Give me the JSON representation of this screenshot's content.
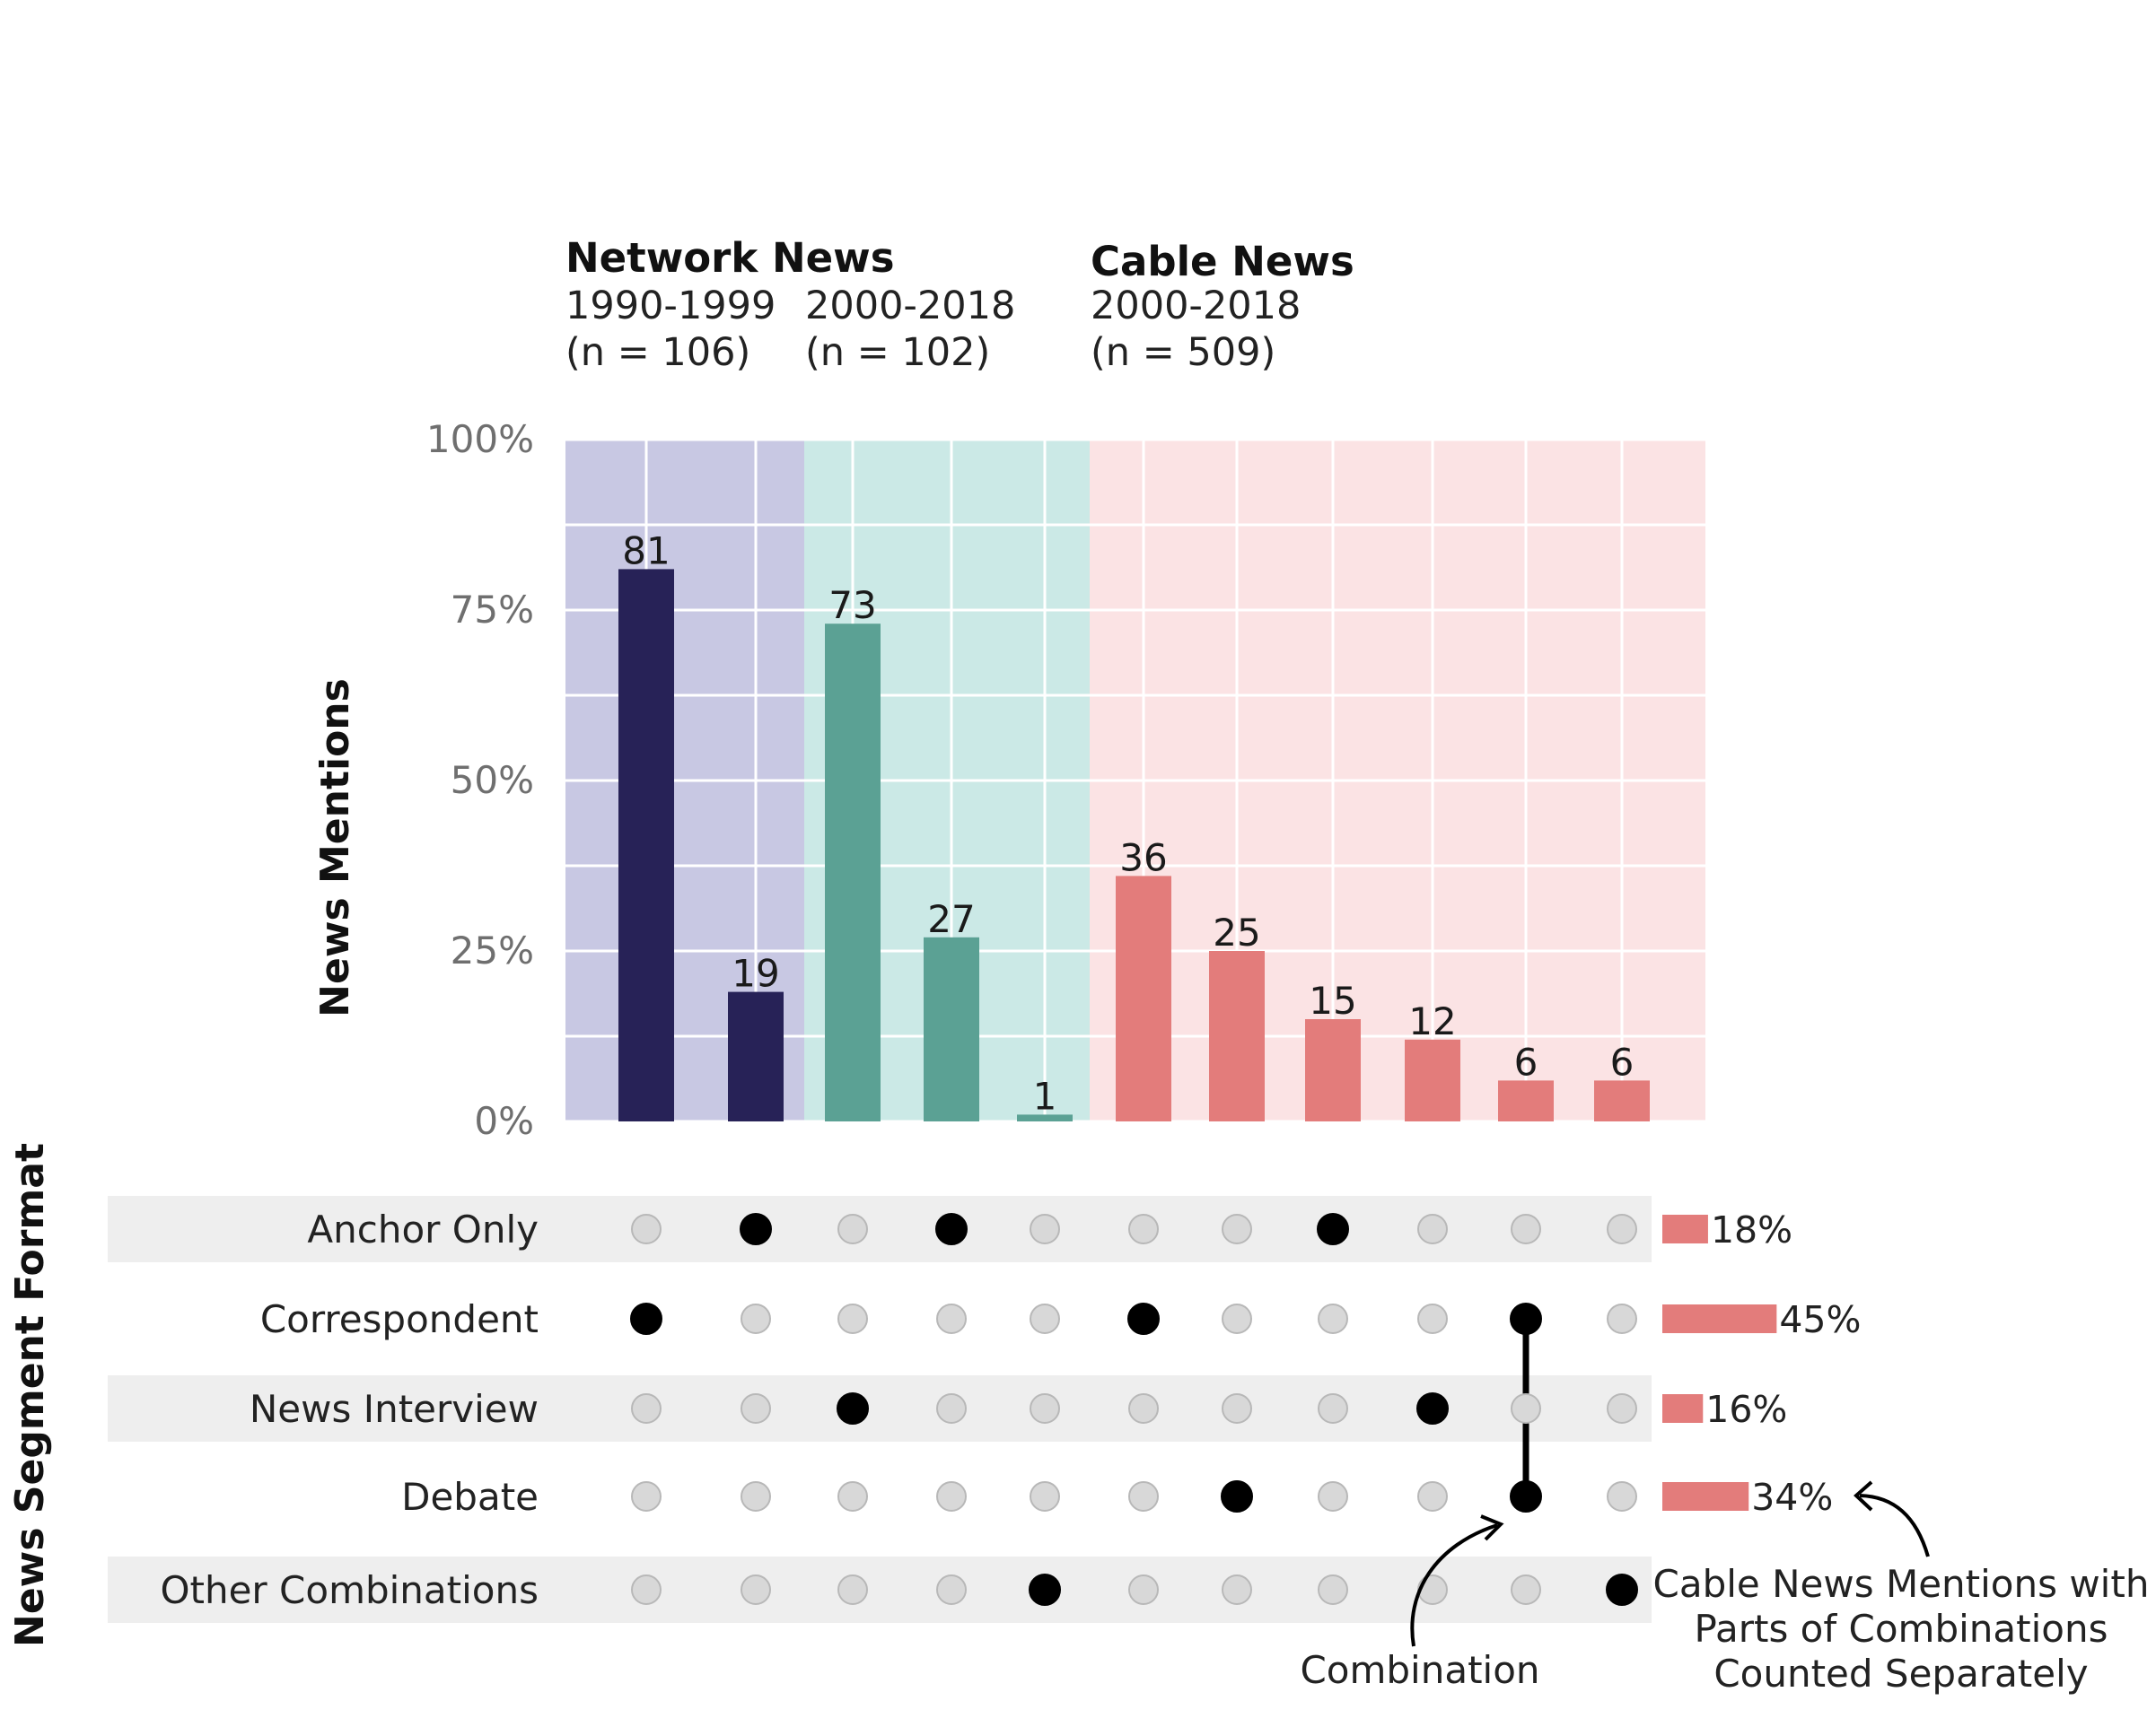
{
  "headers": {
    "network": {
      "title": "Network News",
      "period1": "1990-1999",
      "n1": "(n = 106)",
      "period2": "2000-2018",
      "n2": "(n = 102)"
    },
    "cable": {
      "title": "Cable News",
      "period": "2000-2018",
      "n": "(n = 509)"
    }
  },
  "colors": {
    "network_1990": "#272257",
    "network_2000": "#5ba194",
    "cable": "#e37c7b",
    "bg_network_1990": "#c8c8e3",
    "bg_network_2000": "#cbe9e6",
    "bg_cable": "#fbe3e4",
    "dot_on": "#000000",
    "dot_off": "#d8d8d8",
    "row_band": "#eeeeee"
  },
  "chart_data": {
    "type": "bar",
    "ylabel": "News Mentions",
    "ylim": [
      0,
      100
    ],
    "yticks": [
      "0%",
      "25%",
      "50%",
      "75%",
      "100%"
    ],
    "groups": [
      {
        "name": "Network News 1990-1999",
        "values": [
          81,
          19
        ]
      },
      {
        "name": "Network News 2000-2018",
        "values": [
          73,
          27,
          1
        ]
      },
      {
        "name": "Cable News 2000-2018",
        "values": [
          36,
          25,
          15,
          12,
          6,
          6
        ]
      }
    ],
    "values": [
      81,
      19,
      73,
      27,
      1,
      36,
      25,
      15,
      12,
      6,
      6
    ],
    "value_labels": [
      "81",
      "19",
      "73",
      "27",
      "1",
      "36",
      "25",
      "15",
      "12",
      "6",
      "6"
    ]
  },
  "matrix": {
    "title": "News Segment Format",
    "rows": [
      {
        "label": "Anchor Only",
        "pct": 18,
        "pct_label": "18%"
      },
      {
        "label": "Correspondent",
        "pct": 45,
        "pct_label": "45%"
      },
      {
        "label": "News Interview",
        "pct": 16,
        "pct_label": "16%"
      },
      {
        "label": "Debate",
        "pct": 34,
        "pct_label": "34%"
      },
      {
        "label": "Other Combinations",
        "pct": null,
        "pct_label": ""
      }
    ],
    "active": [
      [
        1
      ],
      [
        0
      ],
      [
        2
      ],
      [
        0
      ],
      [
        4
      ],
      [
        1
      ],
      [
        3
      ],
      [
        0
      ],
      [
        2
      ],
      [
        1,
        3
      ],
      [
        4
      ]
    ]
  },
  "annotations": {
    "combination": "Combination",
    "cable_note_line1": "Cable News Mentions with",
    "cable_note_line2": "Parts of Combinations",
    "cable_note_line3": "Counted Separately"
  }
}
